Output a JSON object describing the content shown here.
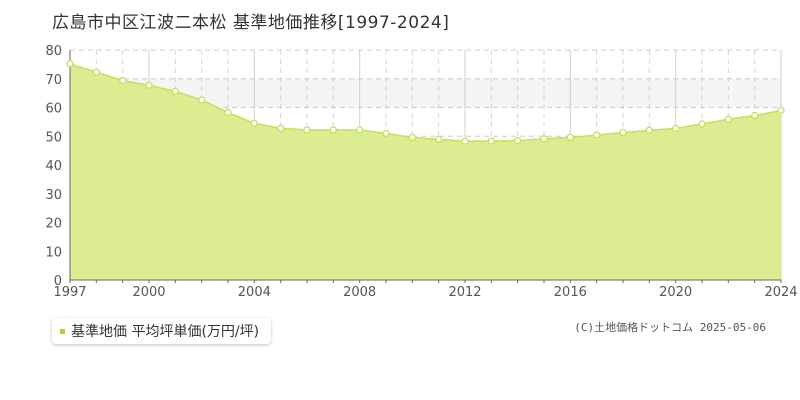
{
  "title": "広島市中区江波二本松 基準地価推移[1997-2024]",
  "legend": {
    "label": "基準地価 平均坪単価(万円/坪)"
  },
  "copyright": "(C)土地価格ドットコム 2025-05-06",
  "colors": {
    "fill": "#dced91",
    "line": "#c3e05e",
    "marker": "#ffffff",
    "grid": "#cccccc",
    "band": "#f5f5f5",
    "legend_swatch": "#b5d334"
  },
  "chart_data": {
    "type": "area",
    "x": [
      1997,
      1998,
      1999,
      2000,
      2001,
      2002,
      2003,
      2004,
      2005,
      2006,
      2007,
      2008,
      2009,
      2010,
      2011,
      2012,
      2013,
      2014,
      2015,
      2016,
      2017,
      2018,
      2019,
      2020,
      2021,
      2022,
      2023,
      2024
    ],
    "series": [
      {
        "name": "基準地価 平均坪単価(万円/坪)",
        "values": [
          75.2,
          72.3,
          69.4,
          67.7,
          65.6,
          62.6,
          58.3,
          54.5,
          52.8,
          52.2,
          52.2,
          52.2,
          51.0,
          49.6,
          48.9,
          48.3,
          48.3,
          48.5,
          49.1,
          49.6,
          50.4,
          51.3,
          52.1,
          52.7,
          54.3,
          55.9,
          57.2,
          59.0
        ]
      }
    ],
    "x_ticks": [
      1997,
      2000,
      2004,
      2008,
      2012,
      2016,
      2020,
      2024
    ],
    "y_ticks": [
      0,
      10,
      20,
      30,
      40,
      50,
      60,
      70,
      80
    ],
    "xlim": [
      1997,
      2024
    ],
    "ylim": [
      0,
      80
    ],
    "grid": true,
    "highlight_band": [
      60,
      70
    ],
    "legend_position": "bottom-left"
  }
}
